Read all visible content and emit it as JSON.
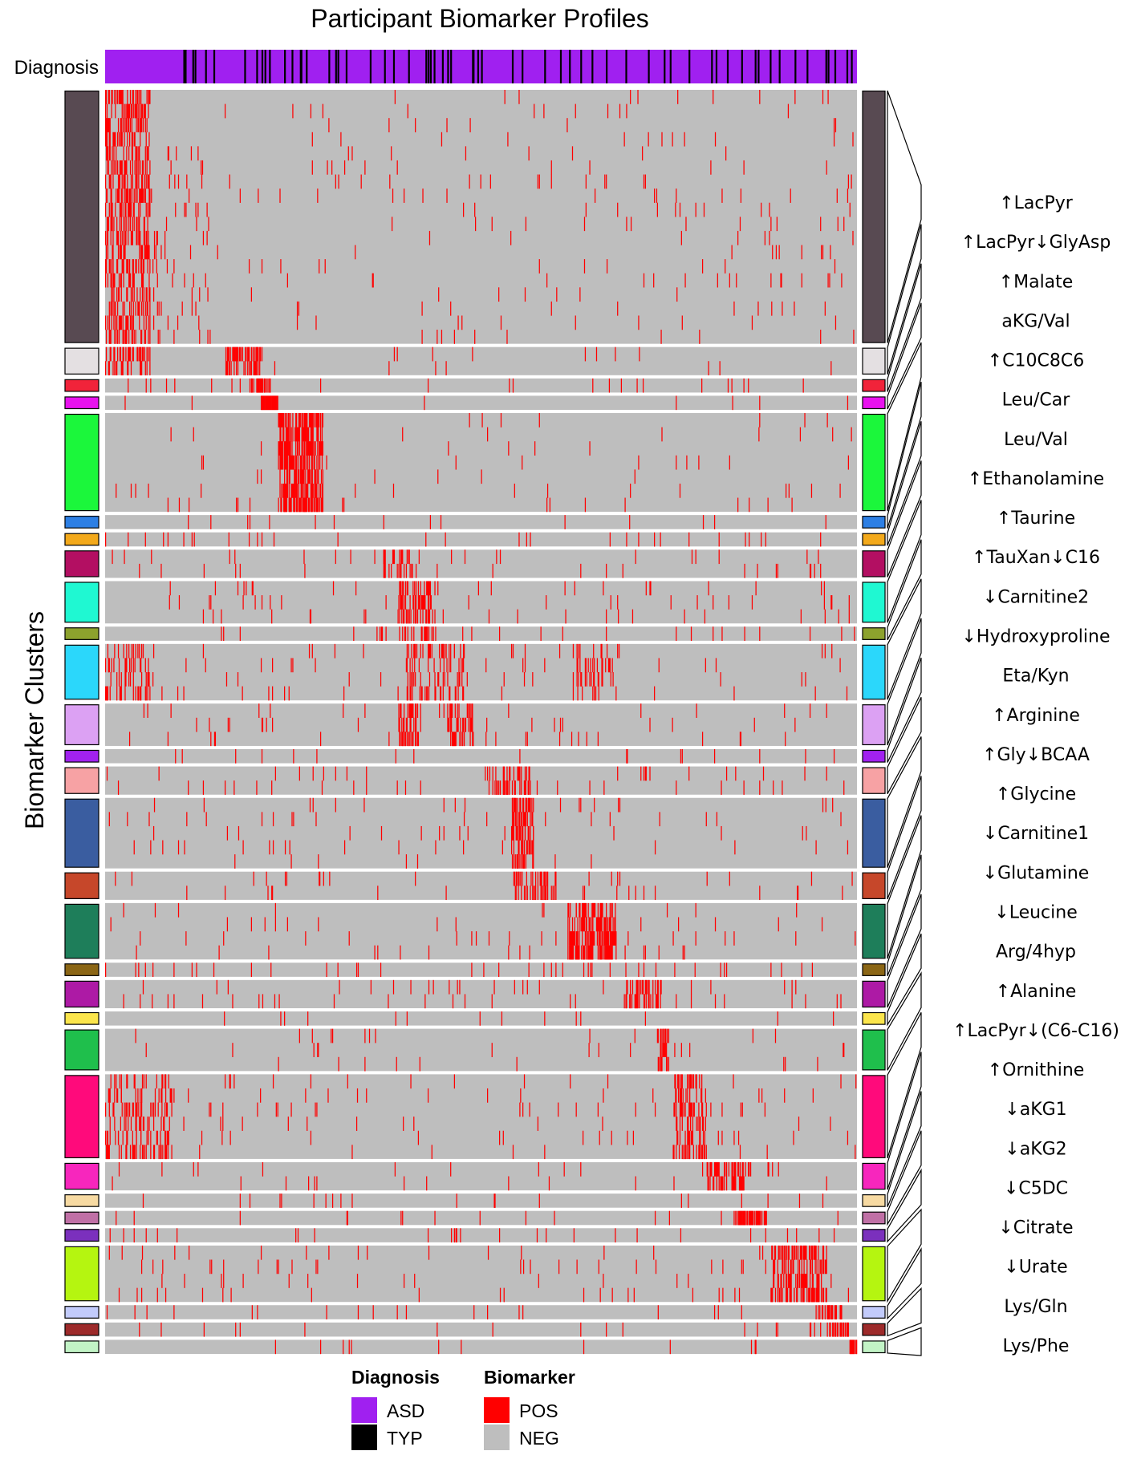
{
  "chart_data": {
    "type": "heatmap",
    "title": "Participant Biomarker Profiles",
    "diagnosis_label": "Diagnosis",
    "ylabel": "Biomarker Clusters",
    "participant_count": 1000,
    "diagnosis_colors": {
      "ASD": "#a020f0",
      "TYP": "#000000"
    },
    "value_colors": {
      "POS": "#ff0000",
      "NEG": "#bebebe"
    },
    "typ_participants": [
      104,
      106,
      116,
      119,
      133,
      144,
      185,
      201,
      208,
      212,
      218,
      238,
      248,
      259,
      260,
      267,
      297,
      306,
      309,
      320,
      352,
      371,
      383,
      403,
      426,
      429,
      432,
      437,
      448,
      455,
      459,
      488,
      489,
      495,
      500,
      541,
      554,
      584,
      605,
      617,
      632,
      647,
      666,
      692,
      722,
      743,
      751,
      776,
      806,
      812,
      827,
      846,
      864,
      868,
      884,
      896,
      917,
      933,
      958,
      961,
      970,
      986,
      992
    ],
    "clusters": [
      {
        "rows": 18,
        "color": "#584a52",
        "blocks": [
          [
            0,
            60,
            0,
            18,
            0.42
          ],
          [
            60,
            140,
            4,
            18,
            0.05
          ],
          [
            140,
            1000,
            0,
            18,
            0.012
          ],
          [
            880,
            980,
            8,
            14,
            0.04
          ]
        ]
      },
      {
        "rows": 2,
        "color": "#e4e0e2",
        "blocks": [
          [
            0,
            60,
            0,
            2,
            0.45
          ],
          [
            160,
            210,
            0,
            2,
            0.5
          ],
          [
            210,
            1000,
            0,
            2,
            0.01
          ]
        ]
      },
      {
        "rows": 1,
        "color": "#f1233a",
        "blocks": [
          [
            190,
            220,
            0,
            1,
            0.55
          ],
          [
            0,
            1000,
            0,
            1,
            0.015
          ]
        ]
      },
      {
        "rows": 1,
        "color": "#e812ee",
        "blocks": [
          [
            207,
            230,
            0,
            1,
            0.95
          ],
          [
            0,
            1000,
            0,
            1,
            0.01
          ]
        ]
      },
      {
        "rows": 7,
        "color": "#1bf73b",
        "blocks": [
          [
            230,
            290,
            0,
            7,
            0.62
          ],
          [
            0,
            1000,
            0,
            7,
            0.01
          ]
        ]
      },
      {
        "rows": 1,
        "color": "#2d7fe4",
        "blocks": [
          [
            0,
            1000,
            0,
            1,
            0.015
          ]
        ]
      },
      {
        "rows": 1,
        "color": "#f3a91b",
        "blocks": [
          [
            0,
            1000,
            0,
            1,
            0.02
          ]
        ]
      },
      {
        "rows": 2,
        "color": "#b30f62",
        "blocks": [
          [
            370,
            420,
            0,
            2,
            0.3
          ],
          [
            0,
            1000,
            0,
            2,
            0.02
          ]
        ]
      },
      {
        "rows": 3,
        "color": "#1ff8d2",
        "blocks": [
          [
            390,
            440,
            0,
            3,
            0.45
          ],
          [
            0,
            1000,
            0,
            3,
            0.025
          ]
        ]
      },
      {
        "rows": 1,
        "color": "#8da22d",
        "blocks": [
          [
            390,
            440,
            0,
            1,
            0.25
          ],
          [
            0,
            1000,
            0,
            1,
            0.02
          ]
        ]
      },
      {
        "rows": 4,
        "color": "#2bd7fb",
        "blocks": [
          [
            0,
            60,
            0,
            4,
            0.25
          ],
          [
            400,
            480,
            0,
            4,
            0.22
          ],
          [
            620,
            680,
            0,
            4,
            0.2
          ],
          [
            0,
            1000,
            0,
            4,
            0.015
          ]
        ]
      },
      {
        "rows": 3,
        "color": "#dca1f3",
        "blocks": [
          [
            390,
            420,
            0,
            3,
            0.4
          ],
          [
            455,
            490,
            0,
            3,
            0.45
          ],
          [
            0,
            1000,
            0,
            3,
            0.02
          ]
        ]
      },
      {
        "rows": 1,
        "color": "#a122ef",
        "blocks": [
          [
            0,
            1000,
            0,
            1,
            0.02
          ]
        ]
      },
      {
        "rows": 2,
        "color": "#f7a2a4",
        "blocks": [
          [
            510,
            570,
            0,
            2,
            0.4
          ],
          [
            0,
            1000,
            0,
            2,
            0.02
          ]
        ]
      },
      {
        "rows": 5,
        "color": "#3a5da0",
        "blocks": [
          [
            540,
            570,
            0,
            5,
            0.55
          ],
          [
            0,
            1000,
            0,
            5,
            0.015
          ]
        ]
      },
      {
        "rows": 2,
        "color": "#c6472a",
        "blocks": [
          [
            540,
            600,
            0,
            2,
            0.4
          ],
          [
            0,
            1000,
            0,
            2,
            0.02
          ]
        ]
      },
      {
        "rows": 4,
        "color": "#1e7e5a",
        "blocks": [
          [
            615,
            680,
            0,
            4,
            0.55
          ],
          [
            0,
            1000,
            0,
            4,
            0.015
          ]
        ]
      },
      {
        "rows": 1,
        "color": "#8b6615",
        "blocks": [
          [
            0,
            1000,
            0,
            1,
            0.03
          ]
        ]
      },
      {
        "rows": 2,
        "color": "#ad1aa5",
        "blocks": [
          [
            690,
            740,
            0,
            2,
            0.45
          ],
          [
            0,
            1000,
            0,
            2,
            0.02
          ]
        ]
      },
      {
        "rows": 1,
        "color": "#fbe54c",
        "blocks": [
          [
            0,
            1000,
            0,
            1,
            0.02
          ]
        ]
      },
      {
        "rows": 3,
        "color": "#1fbf4c",
        "blocks": [
          [
            735,
            750,
            0,
            3,
            0.6
          ],
          [
            0,
            1000,
            0,
            3,
            0.015
          ]
        ]
      },
      {
        "rows": 6,
        "color": "#ff0a7b",
        "blocks": [
          [
            0,
            90,
            0,
            6,
            0.28
          ],
          [
            755,
            800,
            0,
            6,
            0.4
          ],
          [
            0,
            1000,
            0,
            6,
            0.015
          ]
        ]
      },
      {
        "rows": 2,
        "color": "#f726bd",
        "blocks": [
          [
            800,
            860,
            0,
            2,
            0.4
          ],
          [
            0,
            1000,
            0,
            2,
            0.02
          ]
        ]
      },
      {
        "rows": 1,
        "color": "#f7daa2",
        "blocks": [
          [
            0,
            1000,
            0,
            1,
            0.02
          ]
        ]
      },
      {
        "rows": 1,
        "color": "#c070a6",
        "blocks": [
          [
            835,
            880,
            0,
            1,
            0.6
          ],
          [
            0,
            1000,
            0,
            1,
            0.02
          ]
        ]
      },
      {
        "rows": 1,
        "color": "#7b30bd",
        "blocks": [
          [
            0,
            1000,
            0,
            1,
            0.02
          ]
        ]
      },
      {
        "rows": 4,
        "color": "#b5f510",
        "blocks": [
          [
            885,
            960,
            0,
            4,
            0.5
          ],
          [
            0,
            1000,
            0,
            4,
            0.015
          ]
        ]
      },
      {
        "rows": 1,
        "color": "#c2cbfb",
        "blocks": [
          [
            945,
            980,
            0,
            1,
            0.55
          ],
          [
            0,
            1000,
            0,
            1,
            0.02
          ]
        ]
      },
      {
        "rows": 1,
        "color": "#9d2a2a",
        "blocks": [
          [
            960,
            990,
            0,
            1,
            0.5
          ],
          [
            0,
            1000,
            0,
            1,
            0.02
          ]
        ]
      },
      {
        "rows": 1,
        "color": "#c2f3c6",
        "blocks": [
          [
            990,
            1000,
            0,
            1,
            0.9
          ],
          [
            0,
            1000,
            0,
            1,
            0.015
          ]
        ]
      }
    ],
    "cluster_labels": [
      "↑LacPyr",
      "↑LacPyr↓GlyAsp",
      "↑Malate",
      "aKG/Val",
      "↑C10C8C6",
      "Leu/Car",
      "Leu/Val",
      "↑Ethanolamine",
      "↑Taurine",
      "↑TauXan↓C16",
      "↓Carnitine2",
      "↓Hydroxyproline",
      "Eta/Kyn",
      "↑Arginine",
      "↑Gly↓BCAA",
      "↑Glycine",
      "↓Carnitine1",
      "↓Glutamine",
      "↓Leucine",
      "Arg/4hyp",
      "↑Alanine",
      "↑LacPyr↓(C6-C16)",
      "↑Ornithine",
      "↓aKG1",
      "↓aKG2",
      "↓C5DC",
      "↓Citrate",
      "↓Urate",
      "Lys/Gln",
      "Lys/Phe"
    ],
    "legend": {
      "diagnosis_title": "Diagnosis",
      "diagnosis_items": [
        {
          "label": "ASD",
          "color": "#a020f0"
        },
        {
          "label": "TYP",
          "color": "#000000"
        }
      ],
      "biomarker_title": "Biomarker",
      "biomarker_items": [
        {
          "label": "POS",
          "color": "#ff0000"
        },
        {
          "label": "NEG",
          "color": "#bebebe"
        }
      ]
    }
  }
}
